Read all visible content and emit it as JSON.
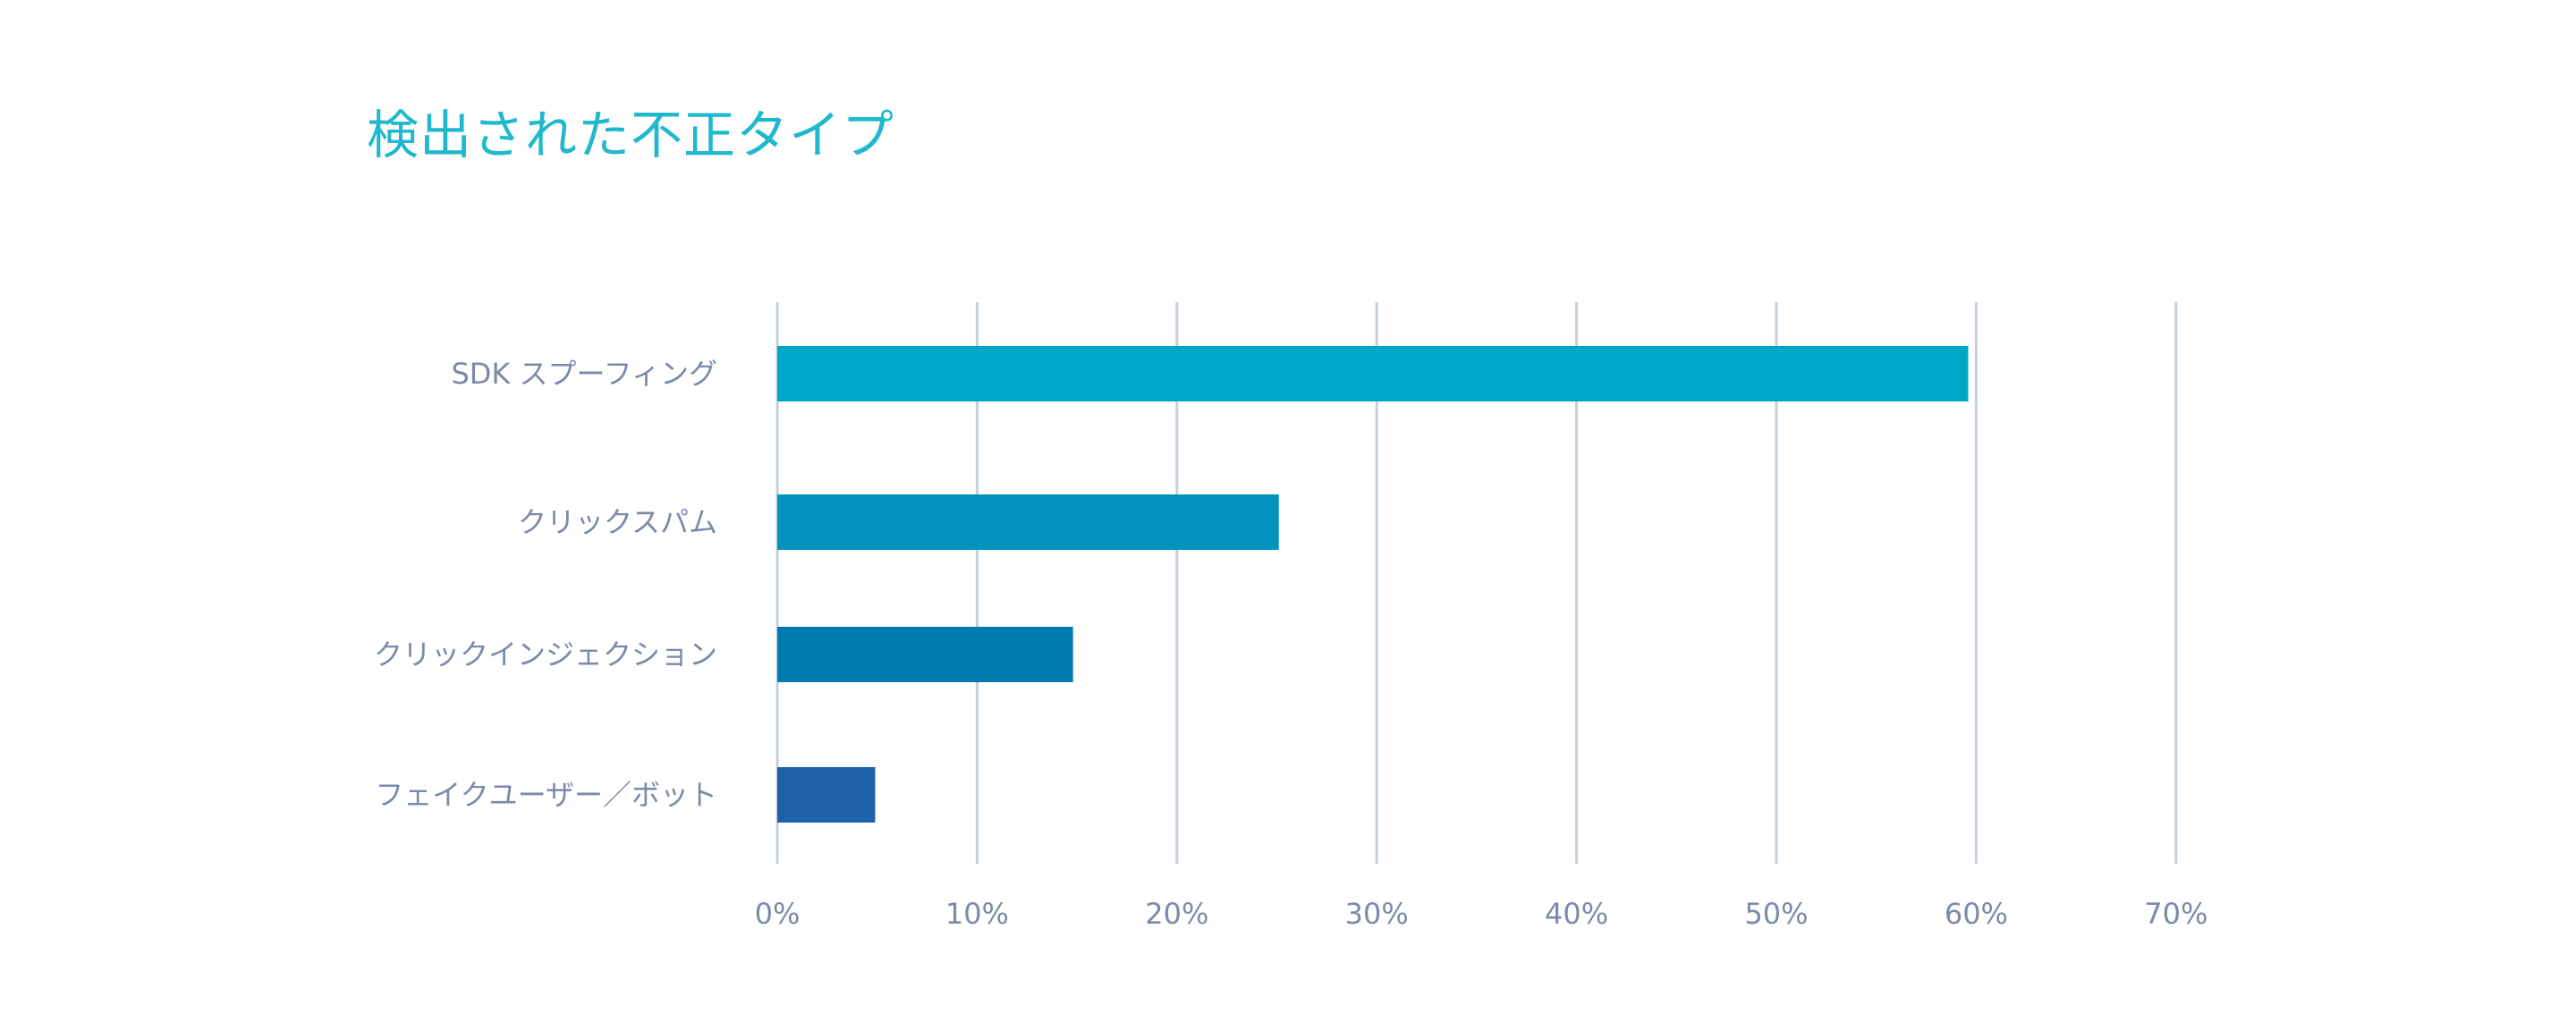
{
  "chart_data": {
    "type": "bar",
    "orientation": "horizontal",
    "title": "検出された不正タイプ",
    "categories": [
      "SDK スプーフィング",
      "クリックスパム",
      "クリックインジェクション",
      "フェイクユーザー／ボット"
    ],
    "values": [
      59.6,
      25.1,
      14.8,
      4.9
    ],
    "xlim": [
      0,
      70
    ],
    "x_ticks": [
      0,
      10,
      20,
      30,
      40,
      50,
      60,
      70
    ],
    "x_tick_labels": [
      "0%",
      "10%",
      "20%",
      "30%",
      "40%",
      "50%",
      "60%",
      "70%"
    ],
    "grid": true,
    "xlabel": "",
    "ylabel": "",
    "colors": [
      "#00a6c5",
      "#0192be",
      "#0179b1",
      "#1d62a8"
    ]
  }
}
